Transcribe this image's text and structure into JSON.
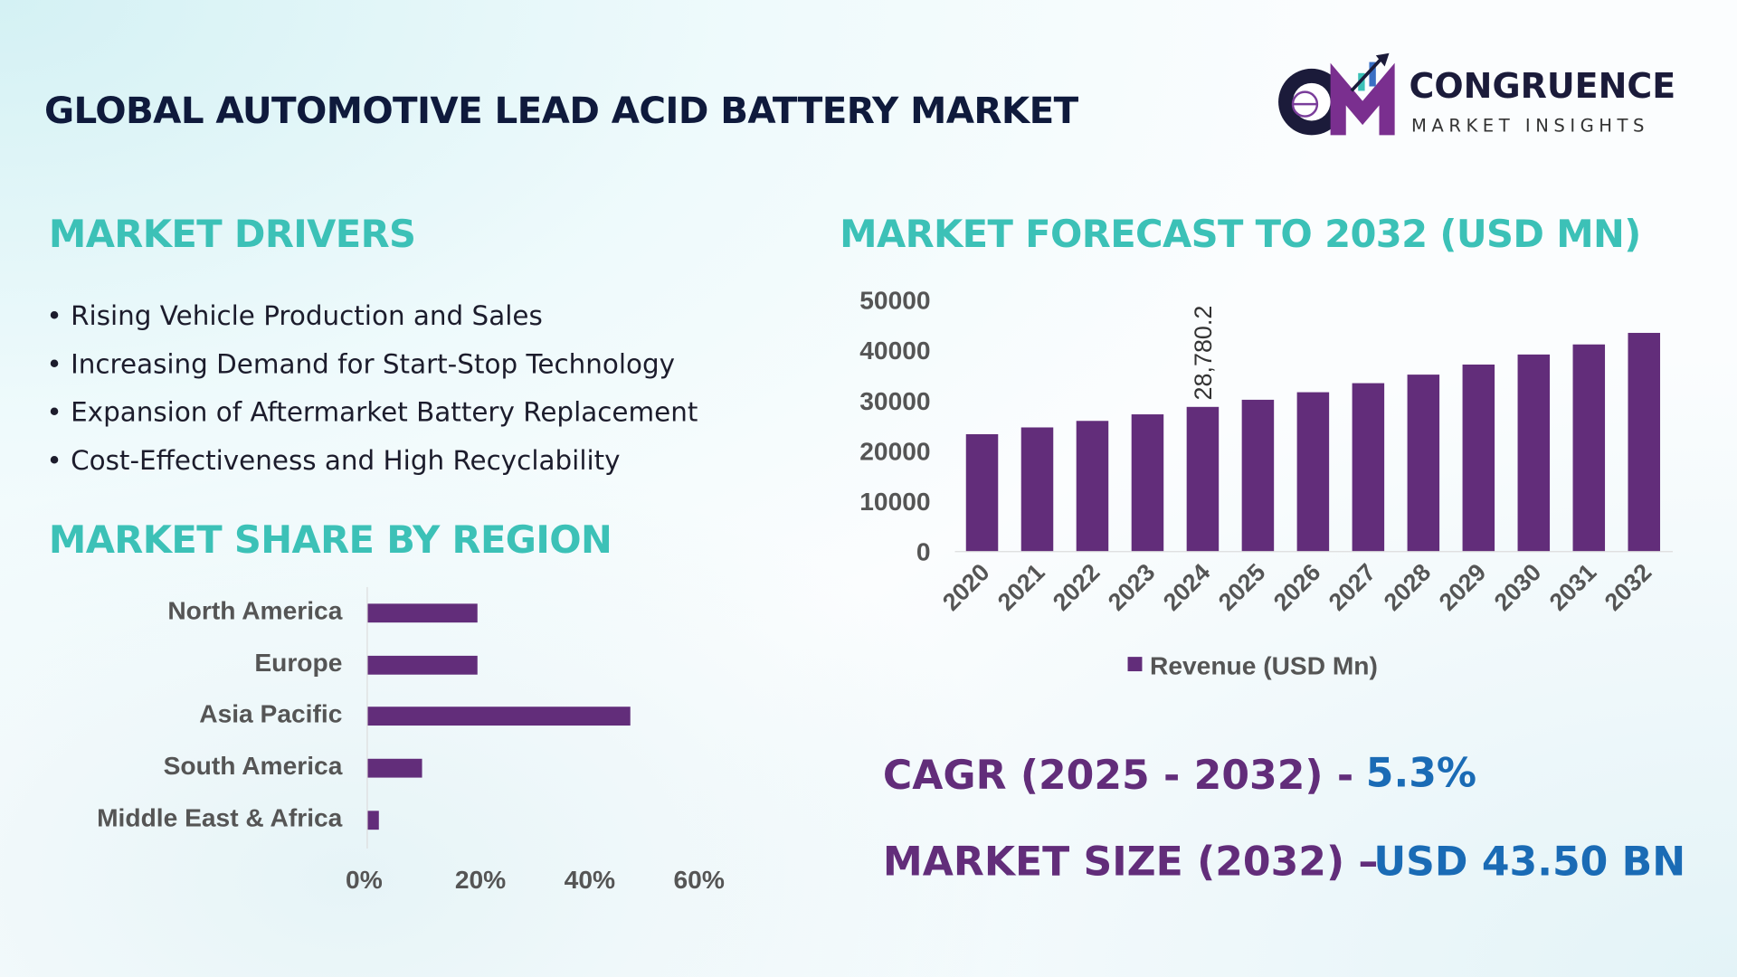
{
  "header": {
    "title": "GLOBAL AUTOMOTIVE LEAD ACID BATTERY MARKET"
  },
  "logo": {
    "name": "CONGRUENCE",
    "tagline": "MARKET INSIGHTS",
    "monogram": "CM"
  },
  "drivers": {
    "title": "MARKET DRIVERS",
    "items": [
      "• Rising Vehicle Production and Sales",
      "• Increasing Demand for Start-Stop Technology",
      "• Expansion of Aftermarket Battery Replacement",
      "• Cost-Effectiveness and High Recyclability"
    ]
  },
  "kpis": {
    "cagr_label": "CAGR (2025 - 2032) -",
    "cagr_value": "5.3%",
    "size_label": "MARKET SIZE (2032) –",
    "size_value": "USD 43.50 BN"
  },
  "colors": {
    "bar": "#622d7a",
    "heading": "#3cc1b7",
    "kpi_label": "#622d7a",
    "kpi_value": "#1a6bb5"
  },
  "chart_data": [
    {
      "type": "bar",
      "title": "MARKET FORECAST TO 2032 (USD MN)",
      "categories": [
        "2020",
        "2021",
        "2022",
        "2023",
        "2024",
        "2025",
        "2026",
        "2027",
        "2028",
        "2029",
        "2030",
        "2031",
        "2032"
      ],
      "series": [
        {
          "name": "Revenue (USD Mn)",
          "values": [
            23350,
            24700,
            26000,
            27300,
            28780.2,
            30200,
            31700,
            33500,
            35200,
            37200,
            39200,
            41200,
            43500
          ]
        }
      ],
      "yticks": [
        "0",
        "10000",
        "20000",
        "30000",
        "40000",
        "50000"
      ],
      "ylim": [
        0,
        50000
      ],
      "data_labels": [
        {
          "category": "2024",
          "text": "28,780.2"
        }
      ],
      "legend": "bottom",
      "grid": false
    },
    {
      "type": "bar",
      "orientation": "horizontal",
      "title": "MARKET SHARE BY REGION",
      "categories": [
        "North America",
        "Europe",
        "Asia Pacific",
        "South America",
        "Middle East & Africa"
      ],
      "values": [
        20,
        20,
        48,
        10,
        2
      ],
      "xticks": [
        "0%",
        "20%",
        "40%",
        "60%"
      ],
      "xlim": [
        0,
        60
      ],
      "grid": false
    }
  ]
}
